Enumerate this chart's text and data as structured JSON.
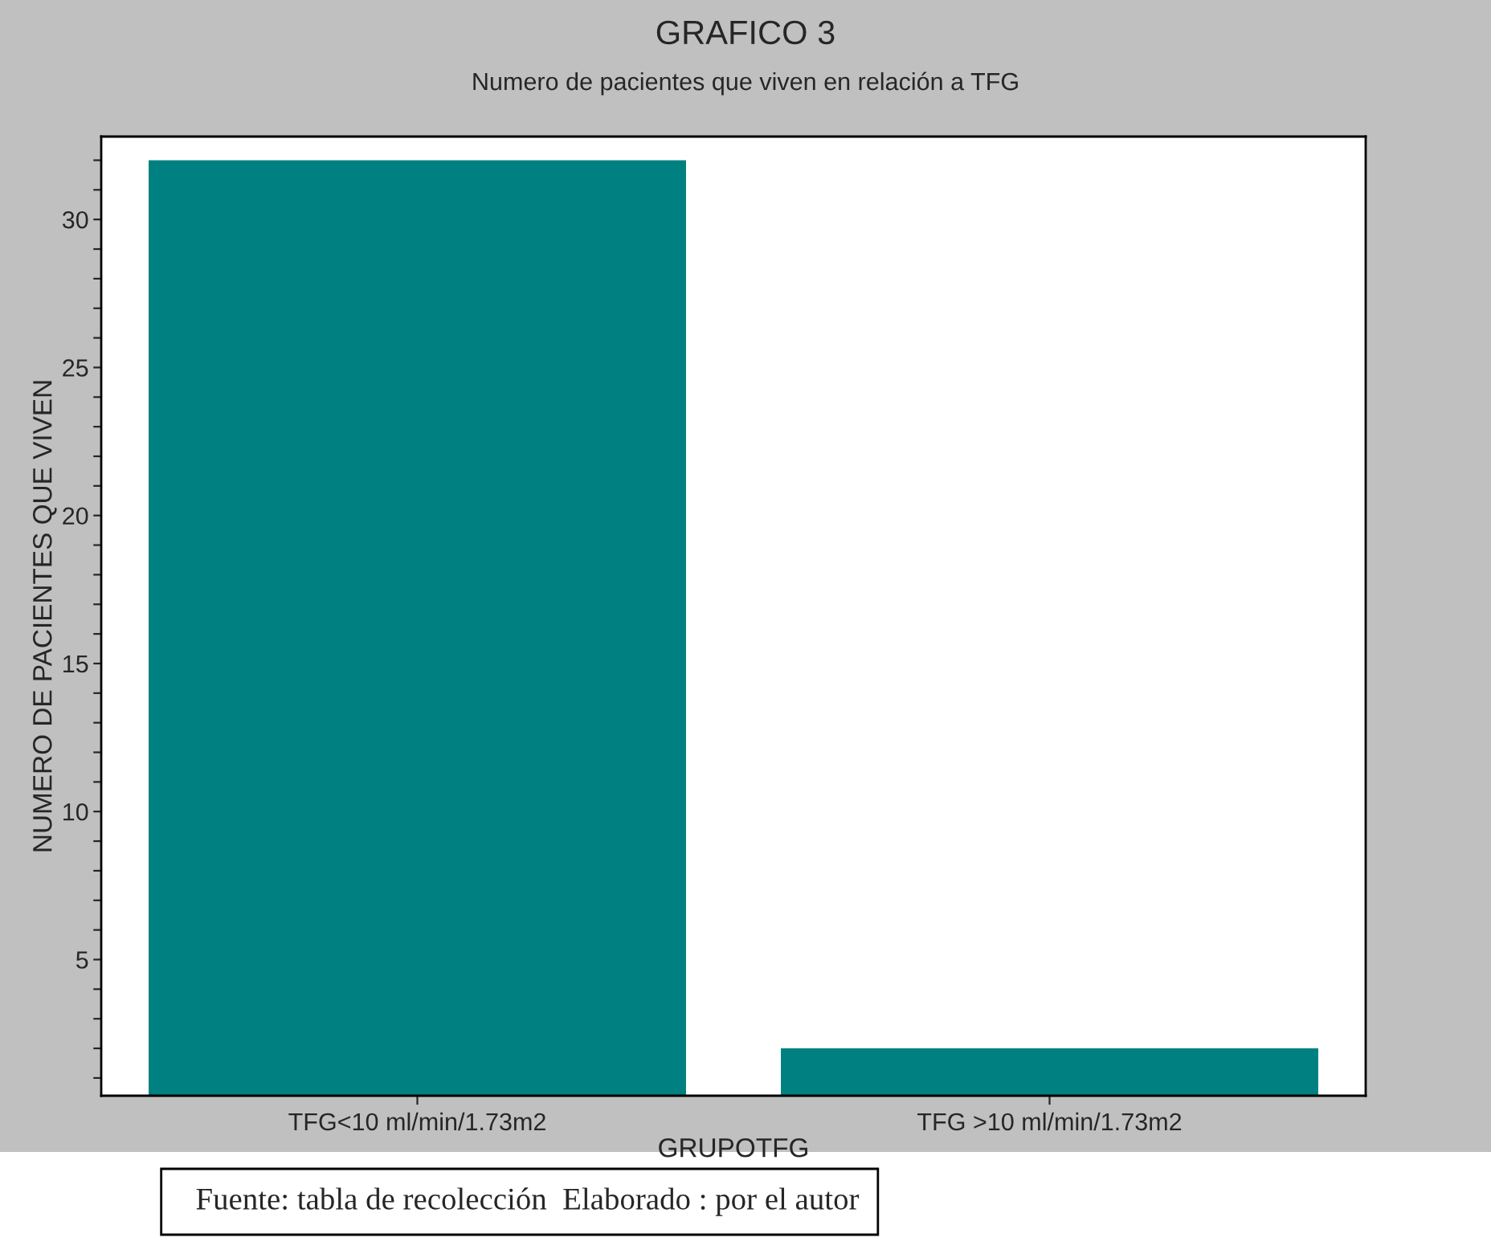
{
  "chart_data": {
    "type": "bar",
    "title": "GRAFICO 3",
    "subtitle": "Numero de pacientes que viven en relación a TFG",
    "xlabel": "GRUPOTFG",
    "ylabel": "NUMERO DE PACIENTES QUE VIVEN",
    "categories": [
      "TFG<10 ml/min/1.73m2",
      "TFG >10 ml/min/1.73m2"
    ],
    "values": [
      32,
      2
    ],
    "color": "#008080",
    "ylim": [
      0.4,
      32.8
    ],
    "yticks": [
      {
        "value": 1,
        "label": null
      },
      {
        "value": 2,
        "label": null
      },
      {
        "value": 3,
        "label": null
      },
      {
        "value": 4,
        "label": null
      },
      5,
      {
        "value": 6,
        "label": null
      },
      {
        "value": 7,
        "label": null
      },
      {
        "value": 8,
        "label": null
      },
      {
        "value": 9,
        "label": null
      },
      10,
      {
        "value": 11,
        "label": null
      },
      {
        "value": 12,
        "label": null
      },
      {
        "value": 13,
        "label": null
      },
      {
        "value": 14,
        "label": null
      },
      15,
      {
        "value": 16,
        "label": null
      },
      {
        "value": 17,
        "label": null
      },
      {
        "value": 18,
        "label": null
      },
      {
        "value": 19,
        "label": null
      },
      20,
      {
        "value": 21,
        "label": null
      },
      {
        "value": 22,
        "label": null
      },
      {
        "value": 23,
        "label": null
      },
      {
        "value": 24,
        "label": null
      },
      25,
      {
        "value": 26,
        "label": null
      },
      {
        "value": 27,
        "label": null
      },
      {
        "value": 28,
        "label": null
      },
      {
        "value": 29,
        "label": null
      },
      30,
      {
        "value": 31,
        "label": null
      },
      {
        "value": 32,
        "label": null
      }
    ],
    "grid": false,
    "legend": false,
    "annotations": [
      "Fuente: tabla de recolección  Elaborado : por el autor"
    ]
  }
}
